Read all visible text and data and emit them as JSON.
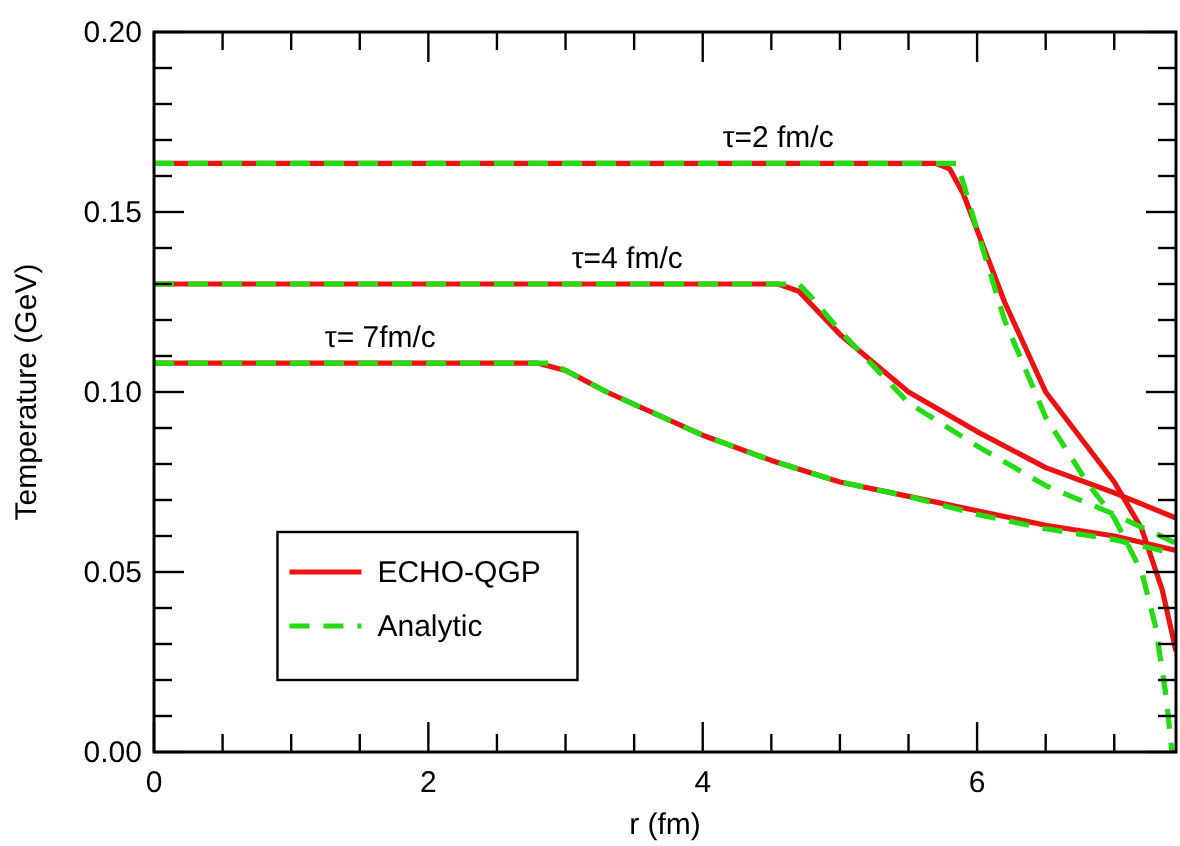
{
  "chart_data": {
    "type": "line",
    "xlabel": "r (fm)",
    "ylabel": "Temperature (GeV)",
    "xlim": [
      0,
      7.45
    ],
    "ylim": [
      0,
      0.2
    ],
    "xticks": [
      0,
      {
        "value": 0.5,
        "label": null
      },
      {
        "value": 1,
        "label": null
      },
      {
        "value": 1.5,
        "label": null
      },
      2,
      {
        "value": 2.5,
        "label": null
      },
      {
        "value": 3,
        "label": null
      },
      {
        "value": 3.5,
        "label": null
      },
      4,
      {
        "value": 4.5,
        "label": null
      },
      {
        "value": 5,
        "label": null
      },
      {
        "value": 5.5,
        "label": null
      },
      6,
      {
        "value": 6.5,
        "label": null
      },
      {
        "value": 7,
        "label": null
      }
    ],
    "yticks": [
      {
        "value": 0,
        "label": "0.00"
      },
      {
        "value": 0.01,
        "label": null
      },
      {
        "value": 0.02,
        "label": null
      },
      {
        "value": 0.03,
        "label": null
      },
      {
        "value": 0.04,
        "label": null
      },
      {
        "value": 0.05,
        "label": "0.05"
      },
      {
        "value": 0.06,
        "label": null
      },
      {
        "value": 0.07,
        "label": null
      },
      {
        "value": 0.08,
        "label": null
      },
      {
        "value": 0.09,
        "label": null
      },
      {
        "value": 0.1,
        "label": "0.10"
      },
      {
        "value": 0.11,
        "label": null
      },
      {
        "value": 0.12,
        "label": null
      },
      {
        "value": 0.13,
        "label": null
      },
      {
        "value": 0.14,
        "label": null
      },
      {
        "value": 0.15,
        "label": "0.15"
      },
      {
        "value": 0.16,
        "label": null
      },
      {
        "value": 0.17,
        "label": null
      },
      {
        "value": 0.18,
        "label": null
      },
      {
        "value": 0.19,
        "label": null
      },
      {
        "value": 0.2,
        "label": "0.20"
      }
    ],
    "grid": false,
    "legend": "bottom left",
    "series": [
      {
        "name": "ECHO-QGP",
        "color": "#ee1111",
        "line_style": "solid",
        "x": [
          0,
          5.7,
          5.8,
          5.9,
          6.0,
          6.2,
          6.5,
          6.8,
          7.0,
          7.2,
          7.35,
          7.45
        ],
        "values": [
          0.1635,
          0.1635,
          0.162,
          0.155,
          0.145,
          0.125,
          0.1,
          0.085,
          0.075,
          0.062,
          0.045,
          0.028
        ]
      },
      {
        "color": "#ee1111",
        "line_style": "solid",
        "x": [
          0,
          4.55,
          4.7,
          5.0,
          5.5,
          6.0,
          6.5,
          7.0,
          7.45
        ],
        "values": [
          0.13,
          0.13,
          0.128,
          0.116,
          0.1,
          0.089,
          0.079,
          0.072,
          0.065
        ]
      },
      {
        "color": "#ee1111",
        "line_style": "solid",
        "x": [
          0,
          2.8,
          3.0,
          3.3,
          4.0,
          4.5,
          5.0,
          5.5,
          6.0,
          6.5,
          7.0,
          7.45
        ],
        "values": [
          0.108,
          0.108,
          0.106,
          0.1,
          0.088,
          0.081,
          0.075,
          0.071,
          0.067,
          0.063,
          0.06,
          0.056
        ]
      },
      {
        "name": "Analytic",
        "color": "#22dd11",
        "line_style": "dashed",
        "x": [
          0,
          5.85,
          5.9,
          6.0,
          6.2,
          6.5,
          6.8,
          7.0,
          7.2,
          7.3,
          7.38,
          7.42
        ],
        "values": [
          0.1635,
          0.1635,
          0.158,
          0.145,
          0.12,
          0.093,
          0.075,
          0.065,
          0.05,
          0.035,
          0.015,
          0
        ]
      },
      {
        "color": "#22dd11",
        "line_style": "dashed",
        "x": [
          0,
          4.7,
          4.8,
          5.0,
          5.5,
          6.0,
          6.5,
          7.0,
          7.45
        ],
        "values": [
          0.13,
          0.13,
          0.126,
          0.117,
          0.097,
          0.085,
          0.074,
          0.066,
          0.058
        ]
      },
      {
        "color": "#22dd11",
        "line_style": "dashed",
        "x": [
          0,
          2.9,
          3.0,
          3.3,
          4.0,
          4.5,
          5.0,
          5.5,
          6.0,
          6.5,
          7.0,
          7.45
        ],
        "values": [
          0.108,
          0.108,
          0.106,
          0.1,
          0.088,
          0.081,
          0.075,
          0.071,
          0.066,
          0.062,
          0.059,
          0.055
        ]
      }
    ],
    "annotations": [
      {
        "text": "τ=2 fm/c",
        "x": 4.55,
        "y": 0.1635
      },
      {
        "text": "τ=4 fm/c",
        "x": 3.45,
        "y": 0.13
      },
      {
        "text": "τ= 7fm/c",
        "x": 1.65,
        "y": 0.108
      }
    ]
  }
}
